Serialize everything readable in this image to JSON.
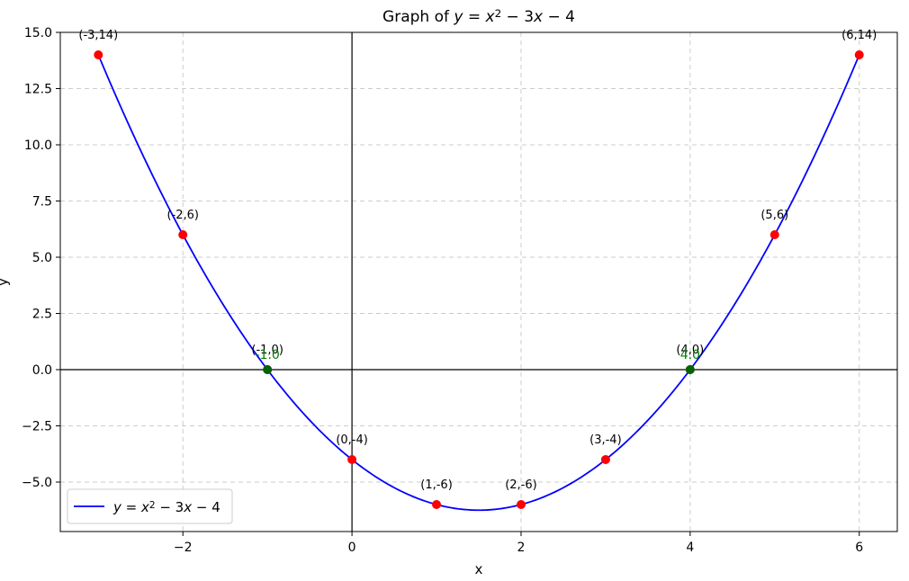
{
  "chart_data": {
    "type": "line",
    "title_parts": [
      "Graph of ",
      "y",
      " = ",
      "x",
      "2",
      " − 3",
      "x",
      " − 4"
    ],
    "xlabel": "x",
    "ylabel": "y",
    "xlim": [
      -3.45,
      6.45
    ],
    "ylim": [
      -7.2,
      15.0
    ],
    "xticks": [
      -2,
      0,
      2,
      4,
      6
    ],
    "xtick_labels": [
      "−2",
      "0",
      "2",
      "4",
      "6"
    ],
    "yticks": [
      -5.0,
      -2.5,
      0.0,
      2.5,
      5.0,
      7.5,
      10.0,
      12.5,
      15.0
    ],
    "ytick_labels": [
      "−5.0",
      "−2.5",
      "0.0",
      "2.5",
      "5.0",
      "7.5",
      "10.0",
      "12.5",
      "15.0"
    ],
    "grid": true,
    "legend_position": "lower-left",
    "series": [
      {
        "name_parts": [
          "y",
          " = ",
          "x",
          "2",
          " − 3",
          "x",
          " − 4"
        ],
        "kind": "curve",
        "coefficients": [
          1,
          -3,
          -4
        ],
        "x_range": [
          -3,
          6
        ],
        "color": "#0000ff"
      }
    ],
    "points": [
      {
        "x": -3,
        "y": 14,
        "label": "(-3,14)"
      },
      {
        "x": -2,
        "y": 6,
        "label": "(-2,6)"
      },
      {
        "x": -1,
        "y": 0,
        "label": "(-1,0)"
      },
      {
        "x": 0,
        "y": -4,
        "label": "(0,-4)"
      },
      {
        "x": 1,
        "y": -6,
        "label": "(1,-6)"
      },
      {
        "x": 2,
        "y": -6,
        "label": "(2,-6)"
      },
      {
        "x": 3,
        "y": -4,
        "label": "(3,-4)"
      },
      {
        "x": 4,
        "y": 0,
        "label": "(4,0)"
      },
      {
        "x": 5,
        "y": 6,
        "label": "(5,6)"
      },
      {
        "x": 6,
        "y": 14,
        "label": "(6,14)"
      }
    ],
    "roots": [
      {
        "x": -1,
        "y": 0,
        "label": "-1.0"
      },
      {
        "x": 4,
        "y": 0,
        "label": "4.0"
      }
    ],
    "colors": {
      "curve": "#0000ff",
      "points": "#ff0000",
      "roots": "#006400",
      "root_label": "#008000",
      "axes": "#000000",
      "grid": "#cccccc"
    }
  }
}
